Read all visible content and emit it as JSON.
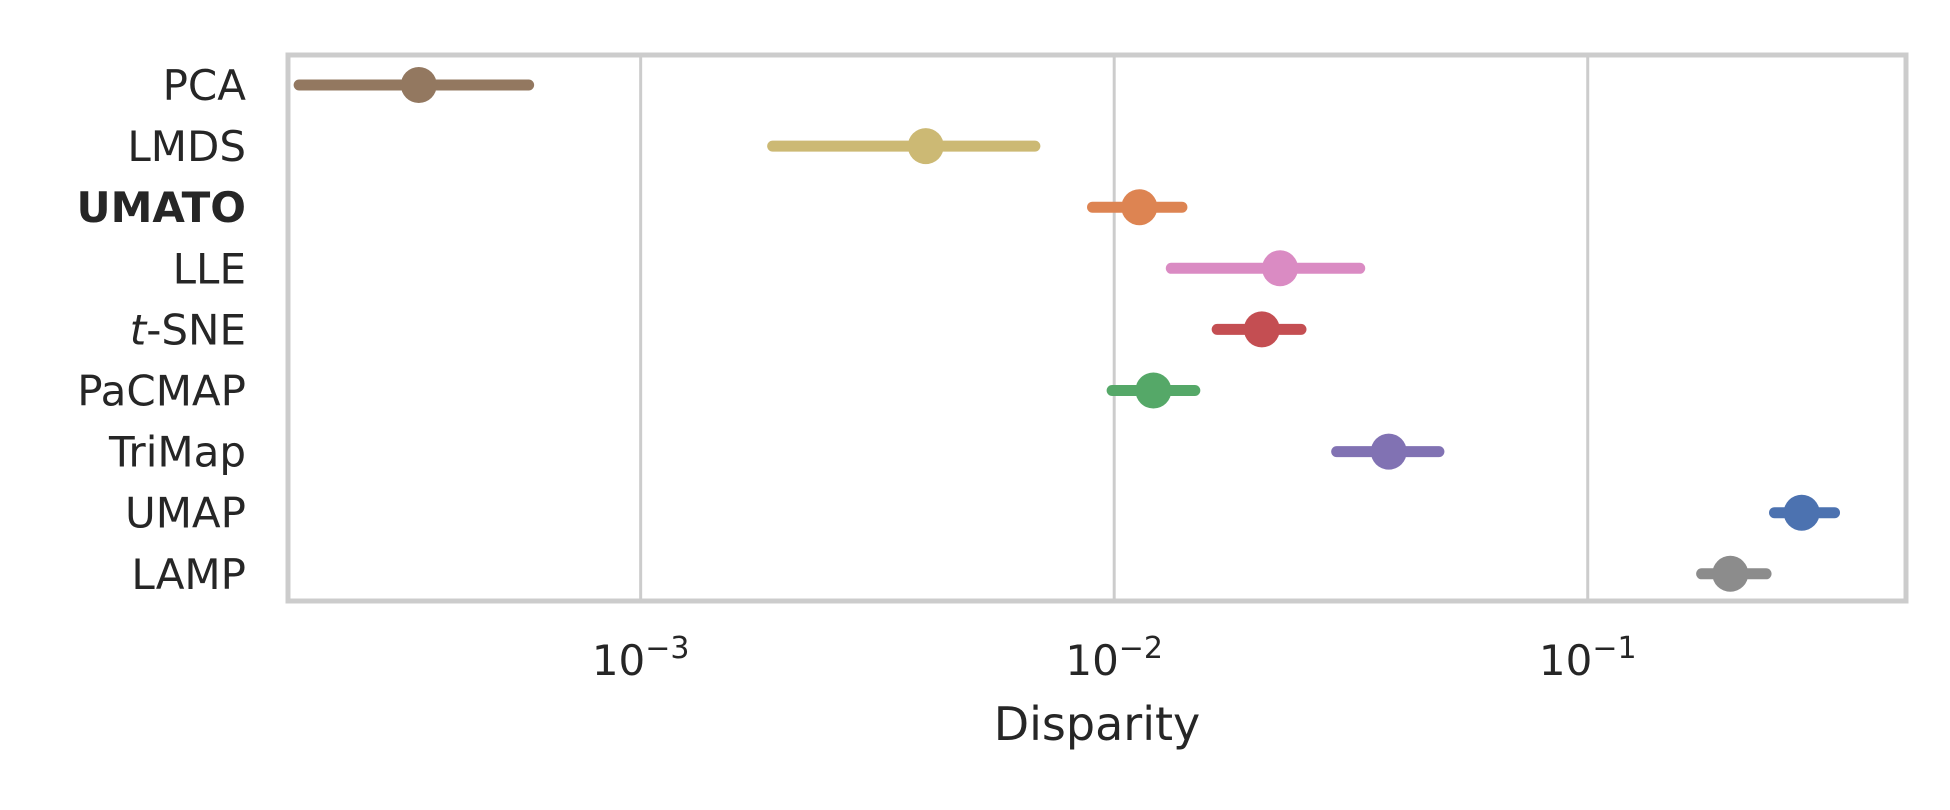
{
  "chart_data": {
    "type": "scatter",
    "xlabel": "Disparity",
    "xscale": "log",
    "xlim": [
      0.00018,
      0.47
    ],
    "xticks": [
      {
        "value": 0.001,
        "base": "10",
        "exp": "−3"
      },
      {
        "value": 0.01,
        "base": "10",
        "exp": "−2"
      },
      {
        "value": 0.1,
        "base": "10",
        "exp": "−1"
      }
    ],
    "grid": true,
    "legend": "none",
    "series": [
      {
        "label": "PCA",
        "x": 0.00034,
        "ci": [
          0.00019,
          0.00058
        ],
        "color": "#937860",
        "bold": false
      },
      {
        "label": "LMDS",
        "x": 0.004,
        "ci": [
          0.0019,
          0.0068
        ],
        "color": "#ccb974",
        "bold": false
      },
      {
        "label": "UMATO",
        "x": 0.0113,
        "ci": [
          0.009,
          0.0139
        ],
        "color": "#dd8452",
        "bold": true
      },
      {
        "label": "LLE",
        "x": 0.0224,
        "ci": [
          0.0132,
          0.033
        ],
        "color": "#da8bc3",
        "bold": false
      },
      {
        "label_pre": "t",
        "label": "-SNE",
        "x": 0.0205,
        "ci": [
          0.0165,
          0.0248
        ],
        "color": "#c44e52",
        "bold": false
      },
      {
        "label": "PaCMAP",
        "x": 0.0121,
        "ci": [
          0.0099,
          0.0148
        ],
        "color": "#55a868",
        "bold": false
      },
      {
        "label": "TriMap",
        "x": 0.038,
        "ci": [
          0.0295,
          0.0485
        ],
        "color": "#8172b3",
        "bold": false
      },
      {
        "label": "UMAP",
        "x": 0.283,
        "ci": [
          0.248,
          0.332
        ],
        "color": "#4c72b0",
        "bold": false
      },
      {
        "label": "LAMP",
        "x": 0.2,
        "ci": [
          0.174,
          0.238
        ],
        "color": "#8c8c8c",
        "bold": false
      }
    ]
  }
}
